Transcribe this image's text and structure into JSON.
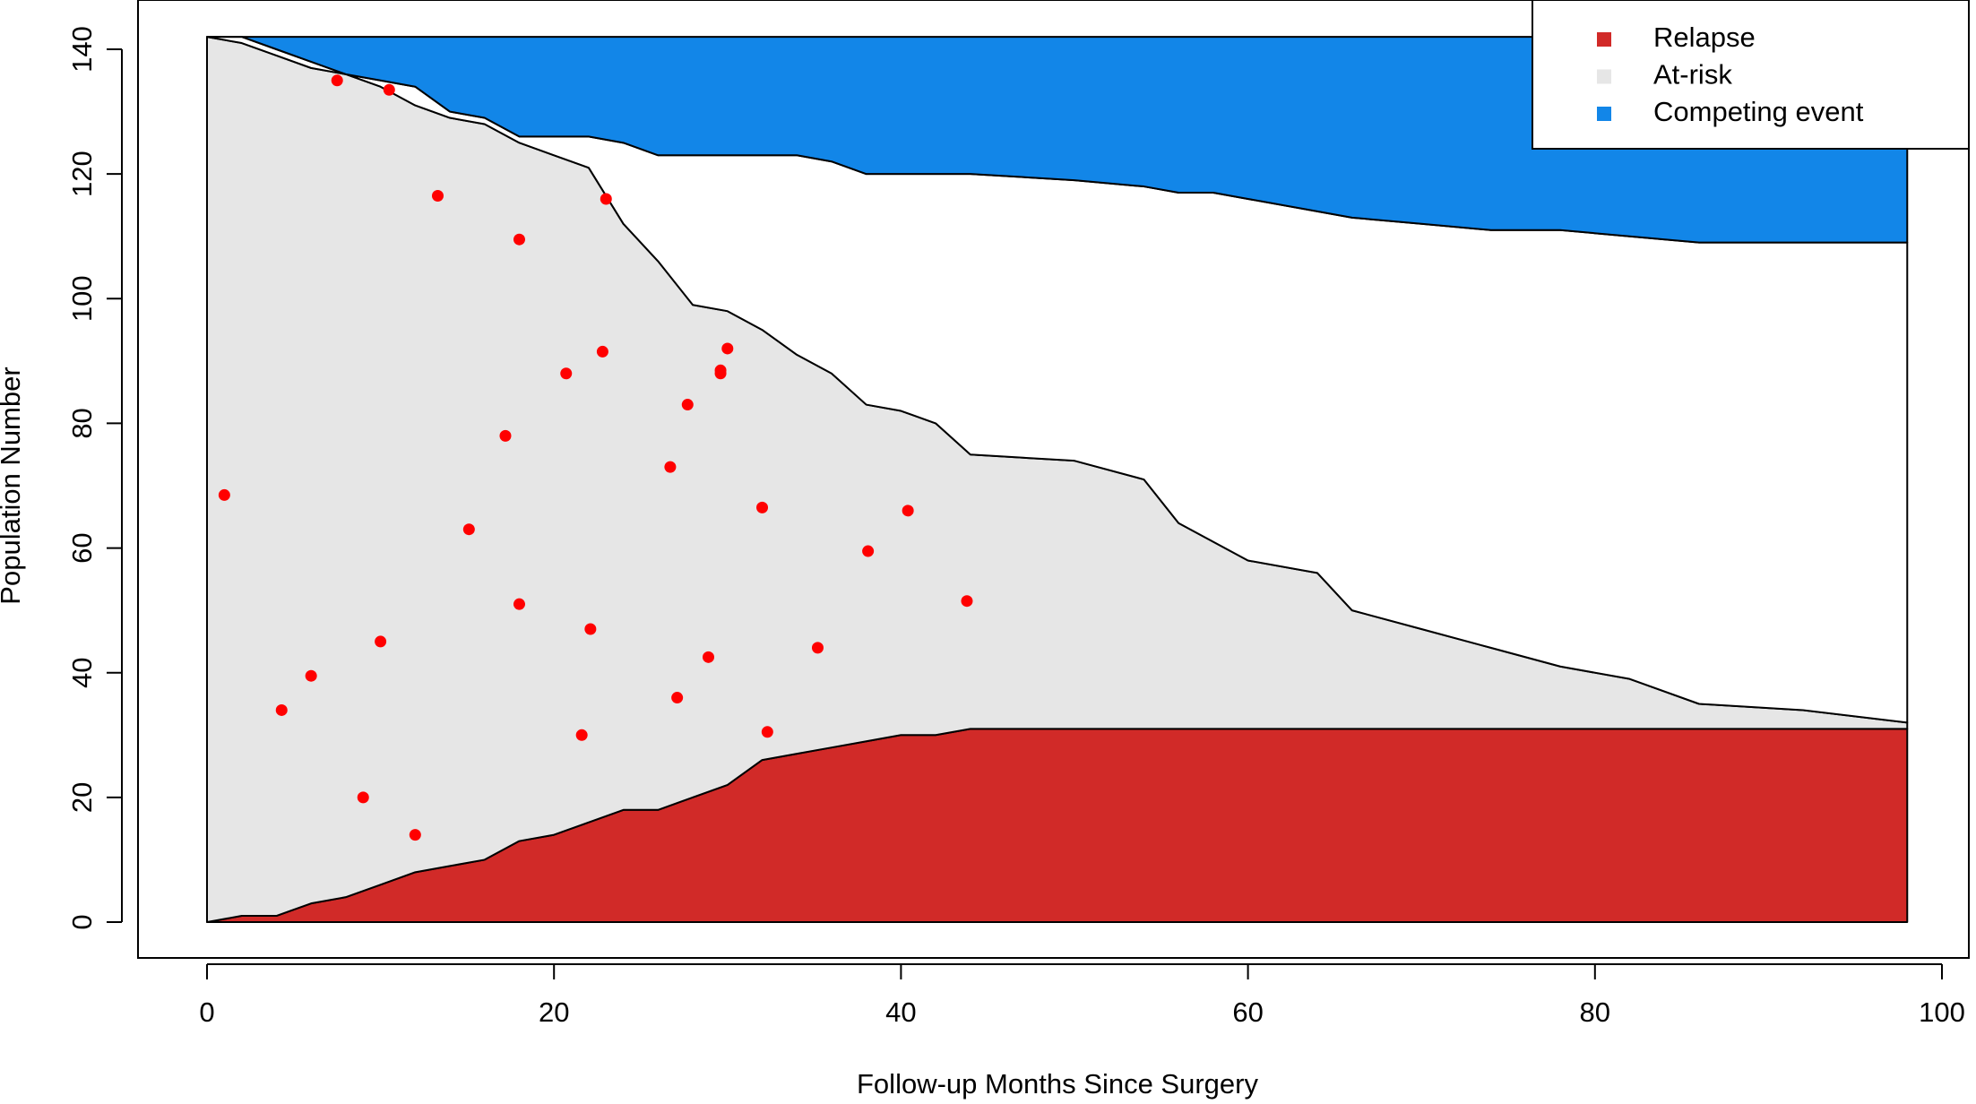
{
  "chart_data": [
    {
      "type": "area",
      "xlabel": "Follow-up Months Since Surgery",
      "ylabel": "Population Number",
      "x": [
        0,
        2,
        4,
        6,
        8,
        10,
        12,
        14,
        16,
        18,
        20,
        22,
        24,
        26,
        28,
        30,
        32,
        34,
        36,
        38,
        40,
        42,
        44,
        50,
        54,
        56,
        58,
        60,
        64,
        66,
        70,
        74,
        78,
        82,
        86,
        92,
        98
      ],
      "series": [
        {
          "name": "Relapse",
          "color": "#d12a28",
          "values": [
            0,
            1,
            1,
            3,
            4,
            6,
            8,
            9,
            10,
            13,
            14,
            16,
            18,
            18,
            20,
            22,
            26,
            27,
            28,
            29,
            30,
            30,
            31,
            31,
            31,
            31,
            31,
            31,
            31,
            31,
            31,
            31,
            31,
            31,
            31,
            31,
            31
          ]
        },
        {
          "name": "At-risk",
          "color": "#e6e6e6",
          "values": [
            142,
            140,
            138,
            134,
            132,
            128,
            123,
            120,
            118,
            112,
            109,
            105,
            94,
            88,
            79,
            76,
            69,
            64,
            60,
            54,
            52,
            50,
            44,
            43,
            40,
            33,
            30,
            27,
            25,
            19,
            16,
            13,
            10,
            8,
            4,
            3,
            1
          ]
        },
        {
          "color": "#ffffff",
          "values": [
            0,
            1,
            1,
            1,
            0,
            1,
            3,
            1,
            1,
            1,
            3,
            5,
            13,
            17,
            24,
            25,
            28,
            32,
            34,
            37,
            38,
            40,
            45,
            45,
            47,
            53,
            56,
            58,
            58,
            63,
            65,
            67,
            70,
            71,
            74,
            75,
            77
          ]
        },
        {
          "name": "Competing event",
          "color": "#1286e8",
          "values": [
            0,
            0,
            2,
            4,
            6,
            7,
            8,
            12,
            13,
            16,
            16,
            16,
            17,
            19,
            19,
            19,
            19,
            19,
            20,
            22,
            22,
            22,
            22,
            23,
            24,
            25,
            25,
            26,
            28,
            29,
            30,
            31,
            31,
            32,
            33,
            33,
            33
          ]
        }
      ],
      "xlim": [
        0,
        100
      ],
      "xticks": [
        0,
        20,
        40,
        60,
        80,
        100
      ],
      "ylim": [
        0,
        140
      ],
      "yticks": [
        0,
        20,
        40,
        60,
        80,
        100,
        120,
        140
      ],
      "legend": "top-right"
    },
    {
      "type": "scatter",
      "color": "#ff0000",
      "x": [
        1,
        4.3,
        6,
        7.5,
        9,
        10,
        10.5,
        12,
        13.3,
        15.1,
        17.2,
        18,
        18,
        20.7,
        21.6,
        22.1,
        22.8,
        23,
        26.7,
        27.1,
        27.7,
        28.9,
        29.6,
        29.6,
        30,
        32,
        32.3,
        35.2,
        38.1,
        40.4,
        43.8
      ],
      "values": [
        68.5,
        34,
        39.5,
        135,
        20,
        45,
        133.5,
        14,
        116.5,
        63,
        78,
        109.5,
        51,
        88,
        30,
        47,
        91.5,
        116,
        73,
        36,
        83,
        42.5,
        88.5,
        88,
        92,
        66.5,
        30.5,
        44,
        59.5,
        66,
        51.5
      ]
    }
  ]
}
